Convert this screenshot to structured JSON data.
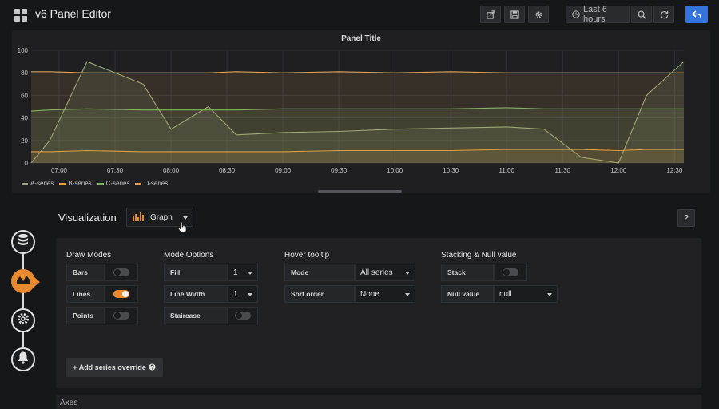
{
  "header": {
    "title": "v6 Panel Editor",
    "time_range": "Last 6 hours",
    "icons": [
      "share-icon",
      "save-icon",
      "gear-icon",
      "clock-icon",
      "zoom-out-icon",
      "refresh-icon",
      "back-arrow-icon"
    ]
  },
  "chart_data": {
    "type": "area",
    "title": "Panel Title",
    "x": [
      "06:45",
      "06:55",
      "07:15",
      "07:45",
      "08:00",
      "08:20",
      "08:35",
      "09:00",
      "09:30",
      "10:00",
      "10:30",
      "11:00",
      "11:20",
      "11:40",
      "12:00",
      "12:15",
      "12:35"
    ],
    "xticks": [
      "07:00",
      "07:30",
      "08:00",
      "08:30",
      "09:00",
      "09:30",
      "10:00",
      "10:30",
      "11:00",
      "11:30",
      "12:00",
      "12:30"
    ],
    "yticks": [
      0,
      20,
      40,
      60,
      80,
      100
    ],
    "ylim": [
      0,
      100
    ],
    "grid": true,
    "legend_position": "bottom-left",
    "series": [
      {
        "name": "A-series",
        "color": "#9ca77d",
        "values": [
          0,
          20,
          90,
          70,
          30,
          50,
          25,
          27,
          28,
          30,
          31,
          32,
          30,
          5,
          0,
          60,
          90
        ]
      },
      {
        "name": "B-series",
        "color": "#e89b3b",
        "values": [
          10,
          10,
          11,
          10,
          10,
          10,
          10,
          10,
          11,
          11,
          11,
          12,
          12,
          12,
          11,
          12,
          12
        ]
      },
      {
        "name": "C-series",
        "color": "#7eb26d",
        "values": [
          46,
          47,
          48,
          47,
          47,
          47,
          47,
          48,
          48,
          48,
          48,
          49,
          48,
          48,
          48,
          48,
          48
        ]
      },
      {
        "name": "D-series",
        "color": "#d6a15a",
        "values": [
          81,
          81,
          80,
          80,
          80,
          80,
          81,
          80,
          81,
          80,
          81,
          80,
          80,
          80,
          80,
          80,
          80
        ]
      }
    ]
  },
  "steps": [
    {
      "name": "queries",
      "icon": "database-icon"
    },
    {
      "name": "visualization",
      "icon": "graph-icon",
      "active": true
    },
    {
      "name": "general",
      "icon": "cog-icon"
    },
    {
      "name": "alert",
      "icon": "bell-icon"
    }
  ],
  "visualization": {
    "title": "Visualization",
    "picker_label": "Graph",
    "help_label": "?"
  },
  "draw_modes": {
    "title": "Draw Modes",
    "rows": [
      {
        "label": "Bars",
        "on": false
      },
      {
        "label": "Lines",
        "on": true
      },
      {
        "label": "Points",
        "on": false
      }
    ]
  },
  "mode_options": {
    "title": "Mode Options",
    "fill_label": "Fill",
    "fill_value": "1",
    "line_width_label": "Line Width",
    "line_width_value": "1",
    "staircase_label": "Staircase",
    "staircase_on": false
  },
  "hover_tooltip": {
    "title": "Hover tooltip",
    "mode_label": "Mode",
    "mode_value": "All series",
    "sort_label": "Sort order",
    "sort_value": "None"
  },
  "stacking": {
    "title": "Stacking & Null value",
    "stack_label": "Stack",
    "stack_on": false,
    "null_label": "Null value",
    "null_value": "null"
  },
  "override_button": "+ Add series override",
  "axes_label": "Axes"
}
